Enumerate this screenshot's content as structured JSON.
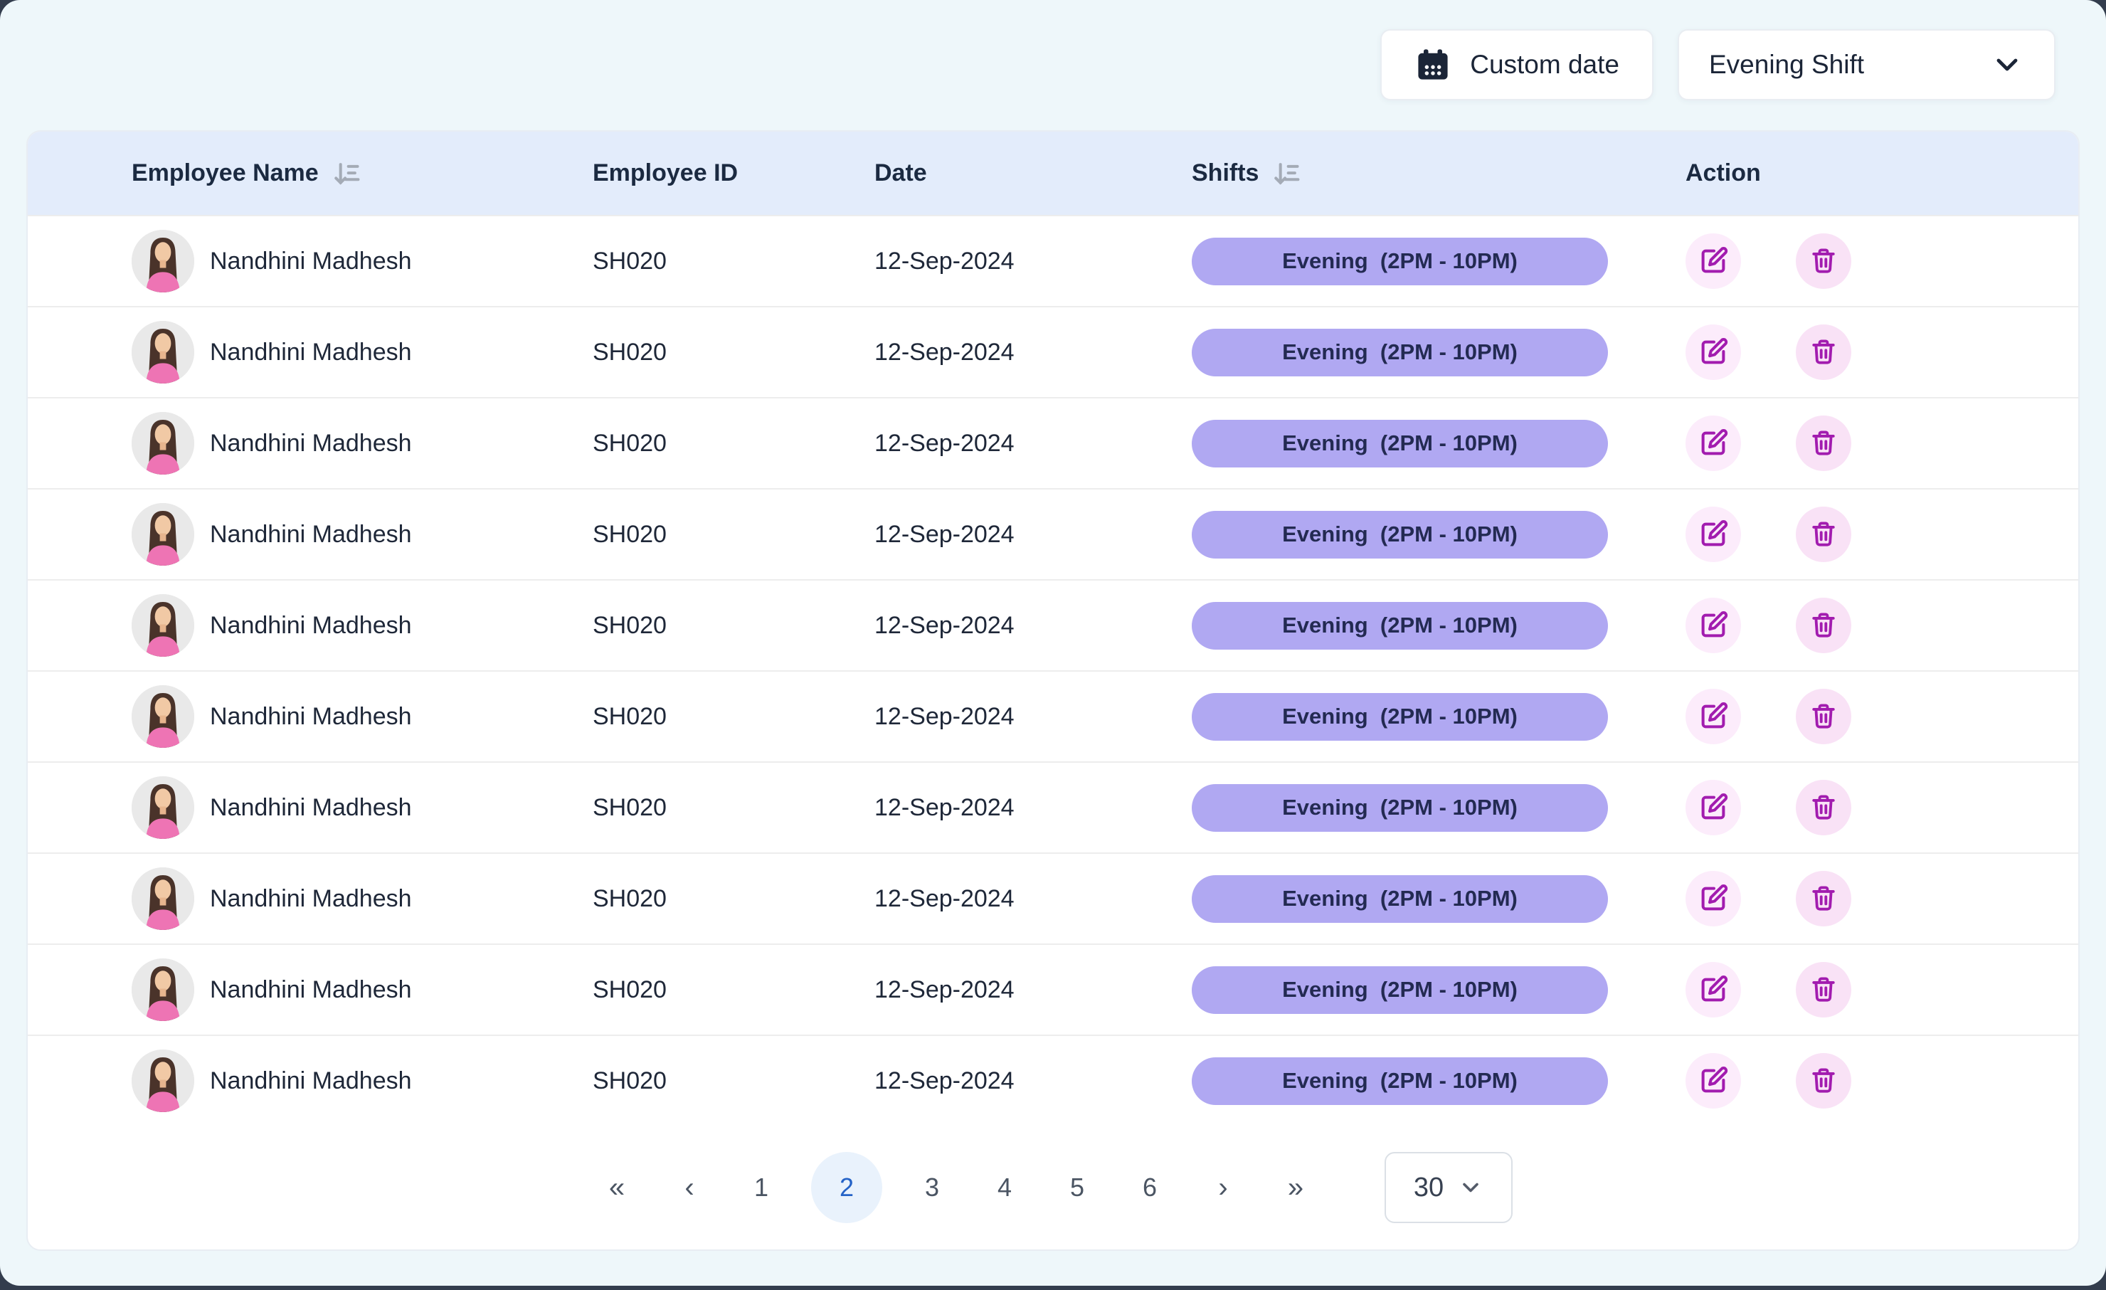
{
  "toolbar": {
    "custom_date_label": "Custom date",
    "shift_filter_selected": "Evening Shift"
  },
  "table": {
    "columns": [
      {
        "label": "Employee Name",
        "sortable": true
      },
      {
        "label": "Employee ID",
        "sortable": false
      },
      {
        "label": "Date",
        "sortable": false
      },
      {
        "label": "Shifts",
        "sortable": true
      },
      {
        "label": "Action",
        "sortable": false
      }
    ],
    "rows": [
      {
        "employee_name": "Nandhini Madhesh",
        "employee_id": "SH020",
        "date": "12-Sep-2024",
        "shift": "Evening  (2PM - 10PM)"
      },
      {
        "employee_name": "Nandhini Madhesh",
        "employee_id": "SH020",
        "date": "12-Sep-2024",
        "shift": "Evening  (2PM - 10PM)"
      },
      {
        "employee_name": "Nandhini Madhesh",
        "employee_id": "SH020",
        "date": "12-Sep-2024",
        "shift": "Evening  (2PM - 10PM)"
      },
      {
        "employee_name": "Nandhini Madhesh",
        "employee_id": "SH020",
        "date": "12-Sep-2024",
        "shift": "Evening  (2PM - 10PM)"
      },
      {
        "employee_name": "Nandhini Madhesh",
        "employee_id": "SH020",
        "date": "12-Sep-2024",
        "shift": "Evening  (2PM - 10PM)"
      },
      {
        "employee_name": "Nandhini Madhesh",
        "employee_id": "SH020",
        "date": "12-Sep-2024",
        "shift": "Evening  (2PM - 10PM)"
      },
      {
        "employee_name": "Nandhini Madhesh",
        "employee_id": "SH020",
        "date": "12-Sep-2024",
        "shift": "Evening  (2PM - 10PM)"
      },
      {
        "employee_name": "Nandhini Madhesh",
        "employee_id": "SH020",
        "date": "12-Sep-2024",
        "shift": "Evening  (2PM - 10PM)"
      },
      {
        "employee_name": "Nandhini Madhesh",
        "employee_id": "SH020",
        "date": "12-Sep-2024",
        "shift": "Evening  (2PM - 10PM)"
      },
      {
        "employee_name": "Nandhini Madhesh",
        "employee_id": "SH020",
        "date": "12-Sep-2024",
        "shift": "Evening  (2PM - 10PM)"
      }
    ]
  },
  "pagination": {
    "first_label": "«",
    "prev_label": "‹",
    "pages": [
      "1",
      "2",
      "3",
      "4",
      "5",
      "6"
    ],
    "active_page": "2",
    "next_label": "›",
    "last_label": "»",
    "page_size": "30"
  },
  "icons": {
    "calendar": "calendar-icon",
    "chevron_down": "chevron-down-icon",
    "sort": "sort-descending-icon",
    "edit": "edit-pencil-square-icon",
    "delete": "trash-icon"
  },
  "colors": {
    "frame_bg": "#333d4d",
    "page_bg": "#eef7fa",
    "header_bg": "#e3ecfb",
    "header_text": "#1b2a41",
    "row_text": "#1e2738",
    "text_dark": "#1b2537",
    "badge_bg": "#b0a8f2",
    "badge_text": "#232a52",
    "action_icon": "#a21caf",
    "edit_circle_bg": "#fcecfb",
    "delete_circle_bg": "#f9e2f6",
    "active_page_bg": "#e9f2fc",
    "active_page_text": "#2563c7",
    "sort_icon": "#a4abb6"
  }
}
